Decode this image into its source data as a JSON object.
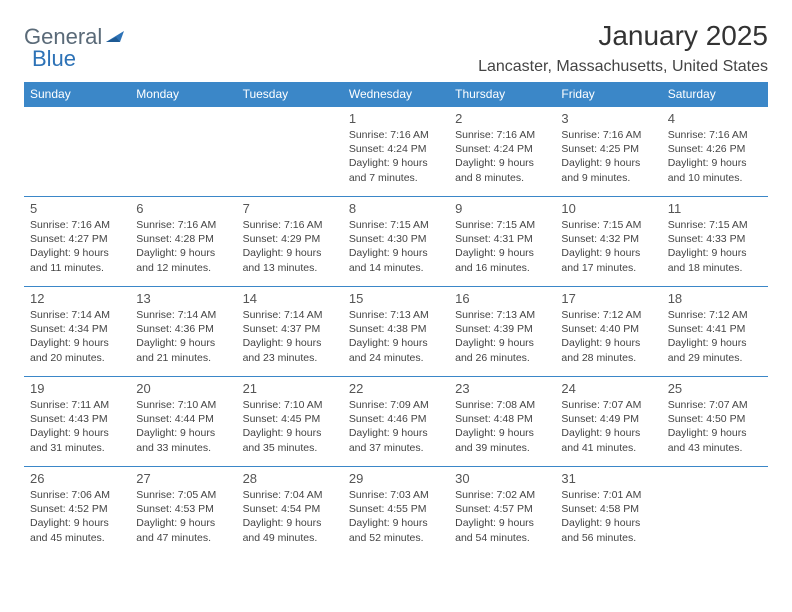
{
  "brand": {
    "part1": "General",
    "part2": "Blue"
  },
  "title": "January 2025",
  "location": "Lancaster, Massachusetts, United States",
  "colors": {
    "header_bg": "#3b87c8",
    "header_text": "#ffffff",
    "border": "#3b87c8",
    "text": "#444444",
    "brand_gray": "#5a6a78",
    "brand_blue": "#2d72b6"
  },
  "dayNames": [
    "Sunday",
    "Monday",
    "Tuesday",
    "Wednesday",
    "Thursday",
    "Friday",
    "Saturday"
  ],
  "weeks": [
    [
      null,
      null,
      null,
      {
        "n": "1",
        "sr": "7:16 AM",
        "ss": "4:24 PM",
        "dl": "9 hours and 7 minutes."
      },
      {
        "n": "2",
        "sr": "7:16 AM",
        "ss": "4:24 PM",
        "dl": "9 hours and 8 minutes."
      },
      {
        "n": "3",
        "sr": "7:16 AM",
        "ss": "4:25 PM",
        "dl": "9 hours and 9 minutes."
      },
      {
        "n": "4",
        "sr": "7:16 AM",
        "ss": "4:26 PM",
        "dl": "9 hours and 10 minutes."
      }
    ],
    [
      {
        "n": "5",
        "sr": "7:16 AM",
        "ss": "4:27 PM",
        "dl": "9 hours and 11 minutes."
      },
      {
        "n": "6",
        "sr": "7:16 AM",
        "ss": "4:28 PM",
        "dl": "9 hours and 12 minutes."
      },
      {
        "n": "7",
        "sr": "7:16 AM",
        "ss": "4:29 PM",
        "dl": "9 hours and 13 minutes."
      },
      {
        "n": "8",
        "sr": "7:15 AM",
        "ss": "4:30 PM",
        "dl": "9 hours and 14 minutes."
      },
      {
        "n": "9",
        "sr": "7:15 AM",
        "ss": "4:31 PM",
        "dl": "9 hours and 16 minutes."
      },
      {
        "n": "10",
        "sr": "7:15 AM",
        "ss": "4:32 PM",
        "dl": "9 hours and 17 minutes."
      },
      {
        "n": "11",
        "sr": "7:15 AM",
        "ss": "4:33 PM",
        "dl": "9 hours and 18 minutes."
      }
    ],
    [
      {
        "n": "12",
        "sr": "7:14 AM",
        "ss": "4:34 PM",
        "dl": "9 hours and 20 minutes."
      },
      {
        "n": "13",
        "sr": "7:14 AM",
        "ss": "4:36 PM",
        "dl": "9 hours and 21 minutes."
      },
      {
        "n": "14",
        "sr": "7:14 AM",
        "ss": "4:37 PM",
        "dl": "9 hours and 23 minutes."
      },
      {
        "n": "15",
        "sr": "7:13 AM",
        "ss": "4:38 PM",
        "dl": "9 hours and 24 minutes."
      },
      {
        "n": "16",
        "sr": "7:13 AM",
        "ss": "4:39 PM",
        "dl": "9 hours and 26 minutes."
      },
      {
        "n": "17",
        "sr": "7:12 AM",
        "ss": "4:40 PM",
        "dl": "9 hours and 28 minutes."
      },
      {
        "n": "18",
        "sr": "7:12 AM",
        "ss": "4:41 PM",
        "dl": "9 hours and 29 minutes."
      }
    ],
    [
      {
        "n": "19",
        "sr": "7:11 AM",
        "ss": "4:43 PM",
        "dl": "9 hours and 31 minutes."
      },
      {
        "n": "20",
        "sr": "7:10 AM",
        "ss": "4:44 PM",
        "dl": "9 hours and 33 minutes."
      },
      {
        "n": "21",
        "sr": "7:10 AM",
        "ss": "4:45 PM",
        "dl": "9 hours and 35 minutes."
      },
      {
        "n": "22",
        "sr": "7:09 AM",
        "ss": "4:46 PM",
        "dl": "9 hours and 37 minutes."
      },
      {
        "n": "23",
        "sr": "7:08 AM",
        "ss": "4:48 PM",
        "dl": "9 hours and 39 minutes."
      },
      {
        "n": "24",
        "sr": "7:07 AM",
        "ss": "4:49 PM",
        "dl": "9 hours and 41 minutes."
      },
      {
        "n": "25",
        "sr": "7:07 AM",
        "ss": "4:50 PM",
        "dl": "9 hours and 43 minutes."
      }
    ],
    [
      {
        "n": "26",
        "sr": "7:06 AM",
        "ss": "4:52 PM",
        "dl": "9 hours and 45 minutes."
      },
      {
        "n": "27",
        "sr": "7:05 AM",
        "ss": "4:53 PM",
        "dl": "9 hours and 47 minutes."
      },
      {
        "n": "28",
        "sr": "7:04 AM",
        "ss": "4:54 PM",
        "dl": "9 hours and 49 minutes."
      },
      {
        "n": "29",
        "sr": "7:03 AM",
        "ss": "4:55 PM",
        "dl": "9 hours and 52 minutes."
      },
      {
        "n": "30",
        "sr": "7:02 AM",
        "ss": "4:57 PM",
        "dl": "9 hours and 54 minutes."
      },
      {
        "n": "31",
        "sr": "7:01 AM",
        "ss": "4:58 PM",
        "dl": "9 hours and 56 minutes."
      },
      null
    ]
  ],
  "labels": {
    "sunrise": "Sunrise:",
    "sunset": "Sunset:",
    "daylight": "Daylight:"
  }
}
